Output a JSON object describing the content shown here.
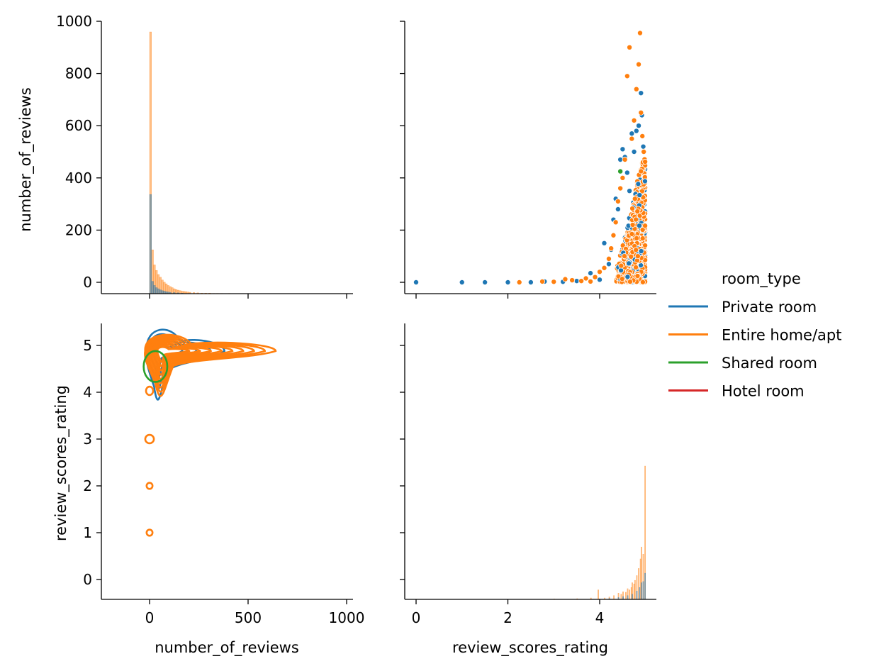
{
  "chart_data": {
    "type": "pairplot",
    "hue": "room_type",
    "variables": [
      "number_of_reviews",
      "review_scores_rating"
    ],
    "legend": {
      "title": "room_type",
      "placement": "right",
      "entries": [
        {
          "name": "Private room",
          "color": "#1f77b4"
        },
        {
          "name": "Entire home/apt",
          "color": "#ff7f0e"
        },
        {
          "name": "Shared room",
          "color": "#2ca02c"
        },
        {
          "name": "Hotel room",
          "color": "#d62728"
        }
      ]
    },
    "axes": {
      "number_of_reviews": {
        "label": "number_of_reviews",
        "range": [
          -50,
          1000
        ],
        "diag_range": [
          -240,
          1030
        ],
        "ticks": [
          0,
          200,
          400,
          600,
          800,
          1000
        ],
        "ticks_x": [
          0,
          500,
          1000
        ]
      },
      "review_scores_rating": {
        "label": "review_scores_rating",
        "range": [
          -0.4,
          5.45
        ],
        "xrange": [
          -0.3,
          5.25
        ],
        "ticks": [
          0,
          1,
          2,
          3,
          4,
          5
        ],
        "ticks_x": [
          0,
          2,
          4
        ]
      }
    },
    "hist_reviews": {
      "bin_width": 10,
      "series": [
        {
          "name": "Entire home/apt",
          "color": "#ff7f0e",
          "bins": [
            [
              0,
              955
            ],
            [
              10,
              160
            ],
            [
              20,
              105
            ],
            [
              30,
              85
            ],
            [
              40,
              70
            ],
            [
              50,
              60
            ],
            [
              60,
              50
            ],
            [
              70,
              42
            ],
            [
              80,
              36
            ],
            [
              90,
              30
            ],
            [
              100,
              26
            ],
            [
              110,
              22
            ],
            [
              120,
              18
            ],
            [
              130,
              15
            ],
            [
              140,
              13
            ],
            [
              150,
              11
            ],
            [
              160,
              9
            ],
            [
              170,
              8
            ],
            [
              180,
              7
            ],
            [
              190,
              6
            ],
            [
              200,
              5
            ],
            [
              220,
              4
            ],
            [
              240,
              3
            ],
            [
              260,
              2
            ],
            [
              280,
              2
            ],
            [
              300,
              2
            ],
            [
              320,
              1
            ],
            [
              340,
              1
            ],
            [
              360,
              1
            ],
            [
              400,
              1
            ]
          ]
        },
        {
          "name": "Private room",
          "color": "#1f77b4",
          "bins": [
            [
              0,
              362
            ],
            [
              10,
              45
            ],
            [
              20,
              30
            ],
            [
              30,
              22
            ],
            [
              40,
              18
            ],
            [
              50,
              14
            ],
            [
              60,
              11
            ],
            [
              70,
              9
            ],
            [
              80,
              7
            ],
            [
              90,
              6
            ],
            [
              100,
              5
            ],
            [
              120,
              4
            ],
            [
              140,
              3
            ],
            [
              160,
              2
            ],
            [
              200,
              1
            ]
          ]
        }
      ]
    },
    "hist_rating": {
      "bin_width": 0.02,
      "series": [
        {
          "name": "Entire home/apt",
          "color": "#ff7f0e",
          "bins": [
            [
              3.0,
              2
            ],
            [
              3.5,
              3
            ],
            [
              3.8,
              6
            ],
            [
              3.96,
              40
            ],
            [
              4.1,
              6
            ],
            [
              4.2,
              10
            ],
            [
              4.3,
              16
            ],
            [
              4.4,
              26
            ],
            [
              4.46,
              22
            ],
            [
              4.5,
              32
            ],
            [
              4.56,
              30
            ],
            [
              4.6,
              45
            ],
            [
              4.64,
              40
            ],
            [
              4.68,
              50
            ],
            [
              4.7,
              70
            ],
            [
              4.74,
              65
            ],
            [
              4.76,
              80
            ],
            [
              4.8,
              100
            ],
            [
              4.84,
              130
            ],
            [
              4.88,
              170
            ],
            [
              4.9,
              220
            ],
            [
              4.94,
              190
            ],
            [
              4.98,
              560
            ]
          ]
        },
        {
          "name": "Private room",
          "color": "#1f77b4",
          "bins": [
            [
              4.2,
              4
            ],
            [
              4.4,
              8
            ],
            [
              4.5,
              12
            ],
            [
              4.6,
              16
            ],
            [
              4.7,
              22
            ],
            [
              4.8,
              35
            ],
            [
              4.86,
              50
            ],
            [
              4.9,
              70
            ],
            [
              4.94,
              75
            ],
            [
              4.98,
              110
            ]
          ]
        }
      ]
    },
    "scatter": {
      "x": "review_scores_rating",
      "y": "number_of_reviews",
      "series": [
        {
          "name": "Private room",
          "color": "#1f77b4",
          "points": [
            [
              0,
              0
            ],
            [
              1,
              0
            ],
            [
              1.5,
              0
            ],
            [
              2,
              0
            ],
            [
              2.5,
              0
            ],
            [
              2.8,
              3
            ],
            [
              3.2,
              2
            ],
            [
              3.5,
              5
            ],
            [
              3.8,
              35
            ],
            [
              4.0,
              10
            ],
            [
              4.1,
              150
            ],
            [
              4.2,
              70
            ],
            [
              4.25,
              125
            ],
            [
              4.3,
              240
            ],
            [
              4.35,
              320
            ],
            [
              4.4,
              280
            ],
            [
              4.45,
              470
            ],
            [
              4.5,
              510
            ],
            [
              4.55,
              480
            ],
            [
              4.6,
              420
            ],
            [
              4.65,
              350
            ],
            [
              4.7,
              570
            ],
            [
              4.75,
              500
            ],
            [
              4.8,
              580
            ],
            [
              4.85,
              600
            ],
            [
              4.9,
              725
            ],
            [
              4.92,
              640
            ],
            [
              4.95,
              520
            ],
            [
              4.98,
              300
            ],
            [
              4.5,
              60
            ],
            [
              4.6,
              110
            ],
            [
              4.7,
              200
            ],
            [
              4.8,
              160
            ],
            [
              4.9,
              90
            ],
            [
              4.96,
              250
            ]
          ]
        },
        {
          "name": "Entire home/apt",
          "color": "#ff7f0e",
          "points": [
            [
              2.25,
              0
            ],
            [
              2.75,
              3
            ],
            [
              3.0,
              2
            ],
            [
              3.25,
              12
            ],
            [
              3.4,
              8
            ],
            [
              3.6,
              5
            ],
            [
              3.7,
              15
            ],
            [
              3.8,
              3
            ],
            [
              3.9,
              20
            ],
            [
              4.0,
              40
            ],
            [
              4.1,
              55
            ],
            [
              4.2,
              90
            ],
            [
              4.25,
              130
            ],
            [
              4.3,
              180
            ],
            [
              4.35,
              230
            ],
            [
              4.4,
              310
            ],
            [
              4.45,
              360
            ],
            [
              4.5,
              400
            ],
            [
              4.55,
              470
            ],
            [
              4.6,
              790
            ],
            [
              4.65,
              900
            ],
            [
              4.7,
              550
            ],
            [
              4.75,
              620
            ],
            [
              4.8,
              740
            ],
            [
              4.85,
              835
            ],
            [
              4.88,
              955
            ],
            [
              4.9,
              650
            ],
            [
              4.93,
              560
            ],
            [
              4.96,
              500
            ],
            [
              4.98,
              420
            ]
          ]
        },
        {
          "name": "Shared room",
          "color": "#2ca02c",
          "points": [
            [
              4.45,
              425
            ],
            [
              4.5,
              70
            ],
            [
              4.55,
              80
            ]
          ]
        }
      ]
    },
    "kde": {
      "x": "number_of_reviews",
      "y": "review_scores_rating",
      "contours": [
        {
          "series": "Private room",
          "color": "#1f77b4",
          "center": [
            45,
            4.88
          ],
          "rx": 110,
          "ry": 0.42,
          "levels": 4,
          "shape": "teardrop",
          "tail_x": 380,
          "dip_y": 3.5
        },
        {
          "series": "Entire home/apt",
          "color": "#ff7f0e",
          "center": [
            60,
            4.88
          ],
          "rx": 150,
          "ry": 0.32,
          "levels": 9,
          "shape": "teardrop",
          "tail_x": 640,
          "dip_y": 3.6
        },
        {
          "series": "Shared room",
          "color": "#2ca02c",
          "center": [
            30,
            4.55
          ],
          "rx": 60,
          "ry": 0.33,
          "levels": 1,
          "shape": "ellipse",
          "tail_x": 0,
          "dip_y": 0
        }
      ],
      "islands": [
        {
          "series": "Entire home/apt",
          "color": "#ff7f0e",
          "center": [
            0,
            3.0
          ],
          "rx": 22,
          "ry": 0.09
        },
        {
          "series": "Entire home/apt",
          "color": "#ff7f0e",
          "center": [
            0,
            2.0
          ],
          "rx": 15,
          "ry": 0.065
        },
        {
          "series": "Entire home/apt",
          "color": "#ff7f0e",
          "center": [
            0,
            1.0
          ],
          "rx": 15,
          "ry": 0.065
        },
        {
          "series": "Entire home/apt",
          "color": "#ff7f0e",
          "center": [
            0,
            4.03
          ],
          "rx": 18,
          "ry": 0.09
        }
      ]
    }
  }
}
